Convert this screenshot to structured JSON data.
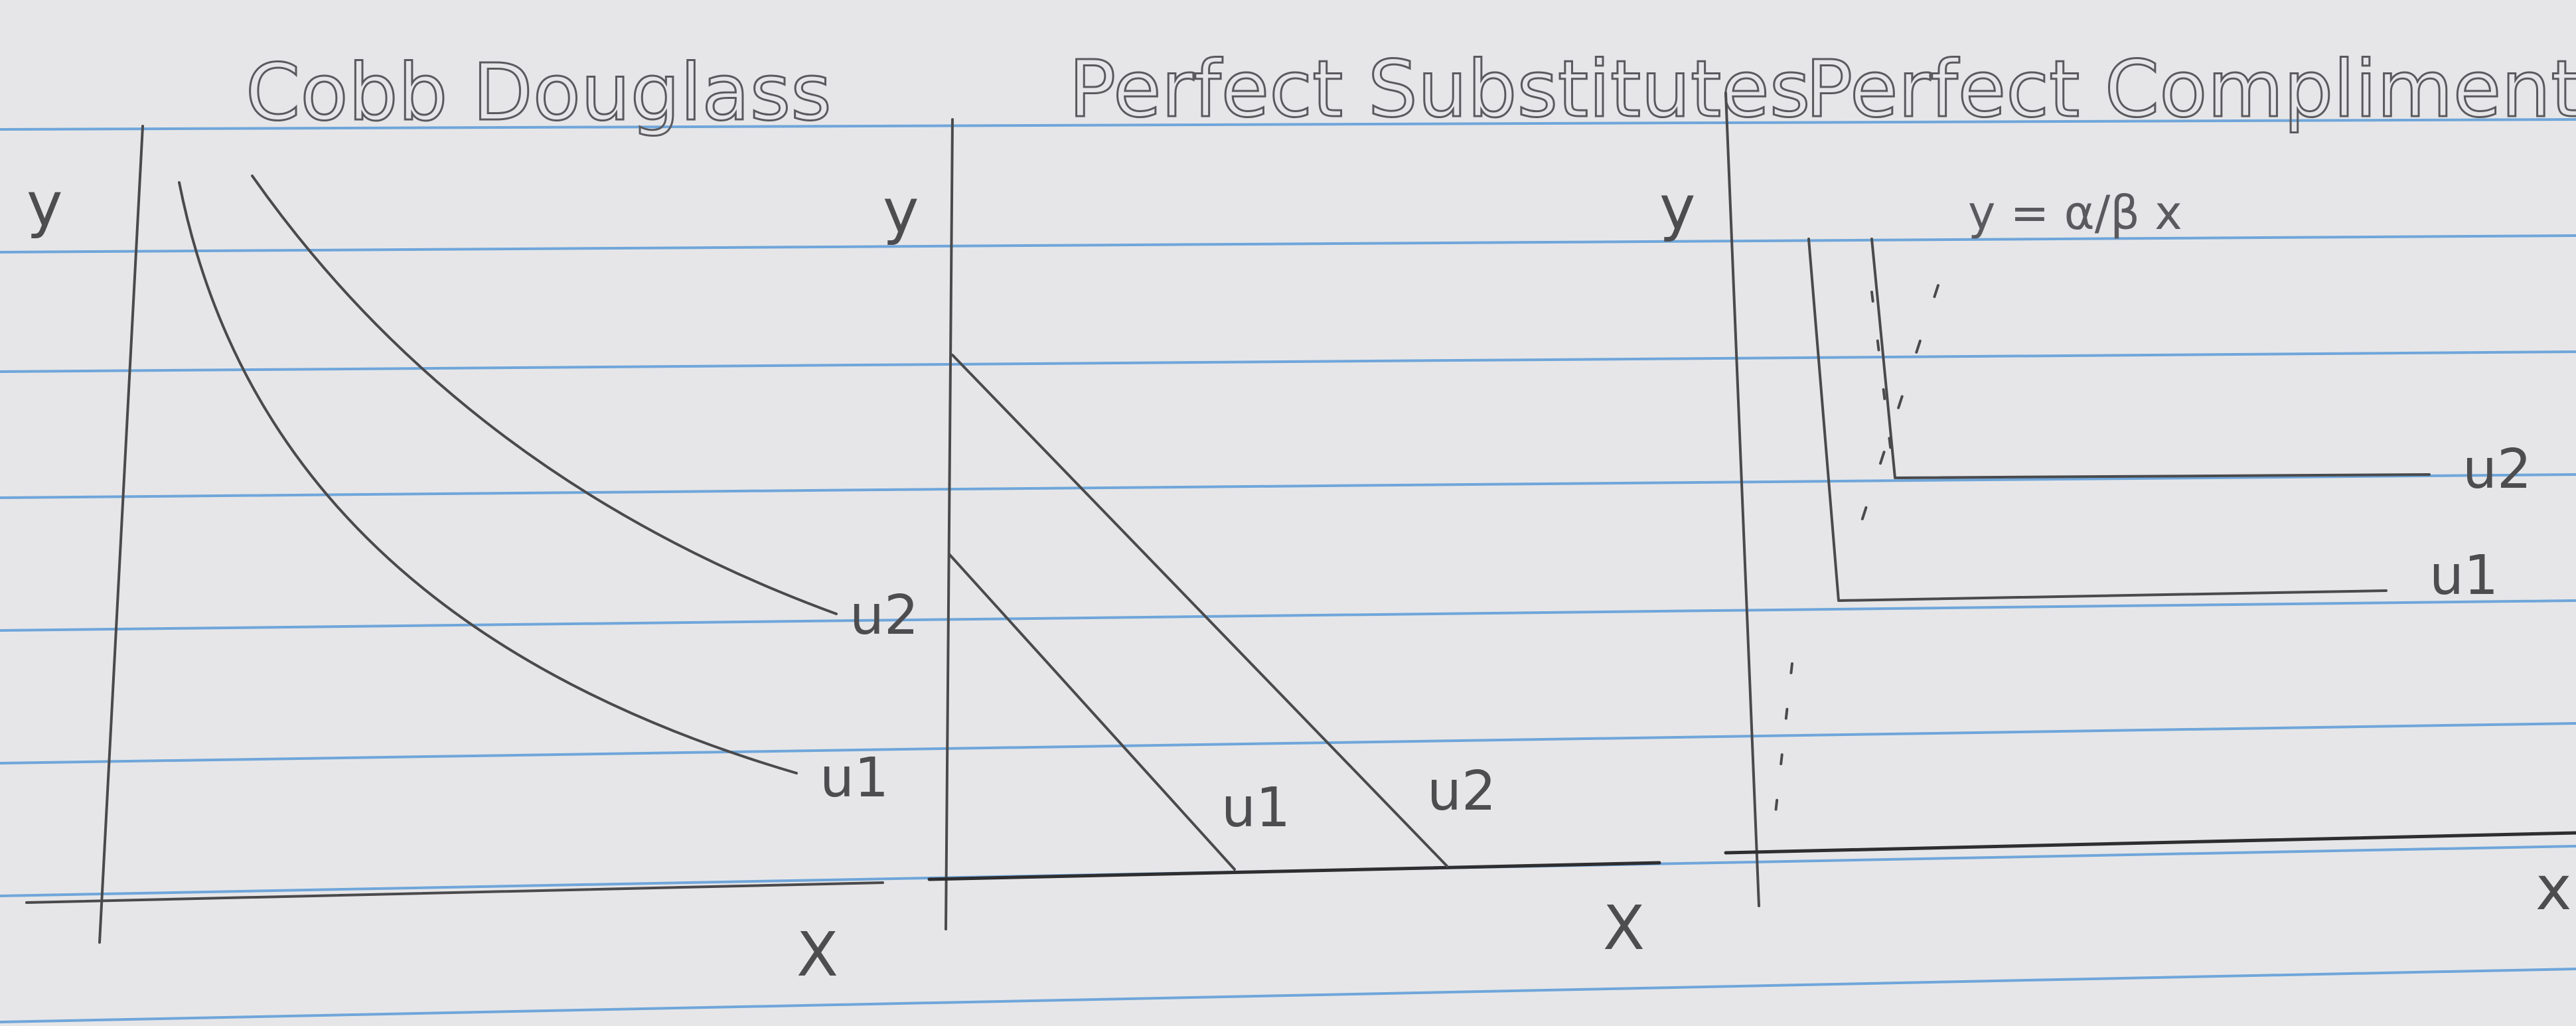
{
  "panels": [
    {
      "title": "Cobb Douglass",
      "y_label": "y",
      "x_label": "X",
      "curves": [
        "u2",
        "u1"
      ]
    },
    {
      "title": "Perfect Substitutes",
      "y_label": "y",
      "x_label": "X",
      "curves": [
        "u1",
        "u2"
      ]
    },
    {
      "title": "Perfect Compliments",
      "y_label": "y",
      "x_label": "x",
      "equation": "y = α/β x",
      "curves": [
        "u2",
        "u1"
      ]
    }
  ],
  "colors": {
    "paper": "#e6e6e8",
    "rule_line": "#5b9bd8",
    "pencil": "#4a4a4c"
  }
}
